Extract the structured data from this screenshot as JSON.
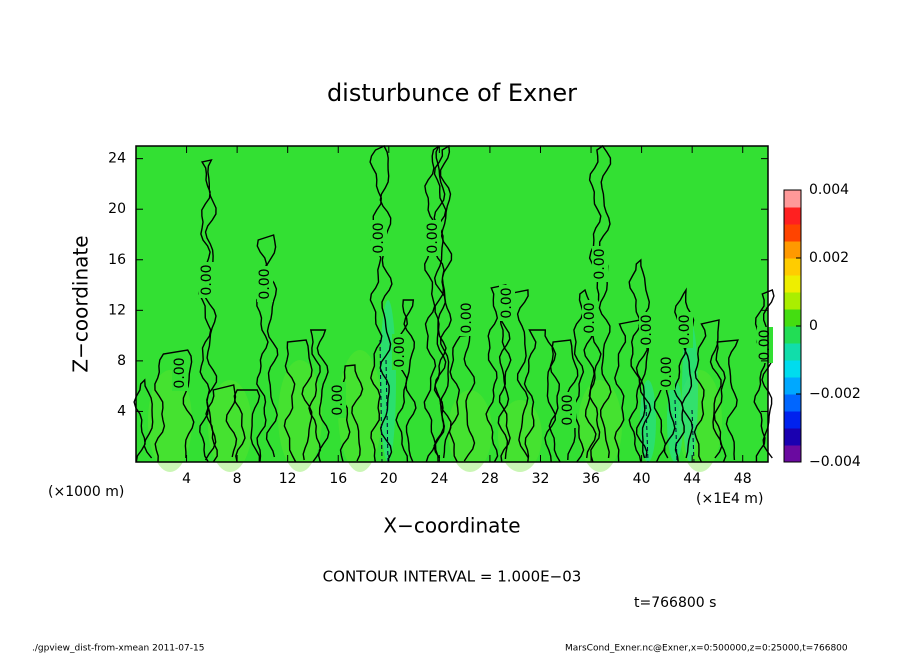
{
  "chart_data": {
    "type": "contour",
    "title": "disturbunce of Exner",
    "x_label": "X−coordinate",
    "y_label": "Z−coordinate",
    "x_unit_left": "(×1000 m)",
    "x_unit_right": "(×1E4 m)",
    "contour_interval": "CONTOUR INTERVAL = 1.000E−03",
    "time_label": "t=766800 s",
    "footer_left": "./gpview_dist-from-xmean  2011-07-15",
    "footer_right": "MarsCond_Exner.nc@Exner,x=0:500000,z=0:25000,t=766800",
    "xlim": [
      0,
      50
    ],
    "xticks": [
      4,
      8,
      12,
      16,
      20,
      24,
      28,
      32,
      36,
      40,
      44,
      48
    ],
    "ylim": [
      0,
      25
    ],
    "yticks": [
      4,
      8,
      12,
      16,
      20,
      24
    ],
    "field_color": "#33e033",
    "contour_labels": [
      "0.00",
      "0.00",
      "0.00",
      "0.00",
      "0.00",
      "0.00",
      "0.00",
      "0.00",
      "0.00",
      "0.00",
      "0.00",
      "0.00",
      "0.00",
      "0.00",
      "0.00",
      "0.00"
    ],
    "colorbar": {
      "lim": [
        -0.004,
        0.004
      ],
      "ticks": [
        {
          "value": 0.004,
          "label": "0.004"
        },
        {
          "value": 0.002,
          "label": "0.002"
        },
        0,
        {
          "value": -0.002,
          "label": "−0.002"
        },
        {
          "value": -0.004,
          "label": "−0.004"
        }
      ],
      "colors": [
        "#6a0aa0",
        "#1a00b0",
        "#0022ee",
        "#0066ff",
        "#00a8ff",
        "#00dcee",
        "#11ddaa",
        "#22dd55",
        "#44dd11",
        "#aaee00",
        "#eeee00",
        "#ffcc00",
        "#ff9900",
        "#ff4400",
        "#ff2020",
        "#ff9999"
      ]
    }
  }
}
